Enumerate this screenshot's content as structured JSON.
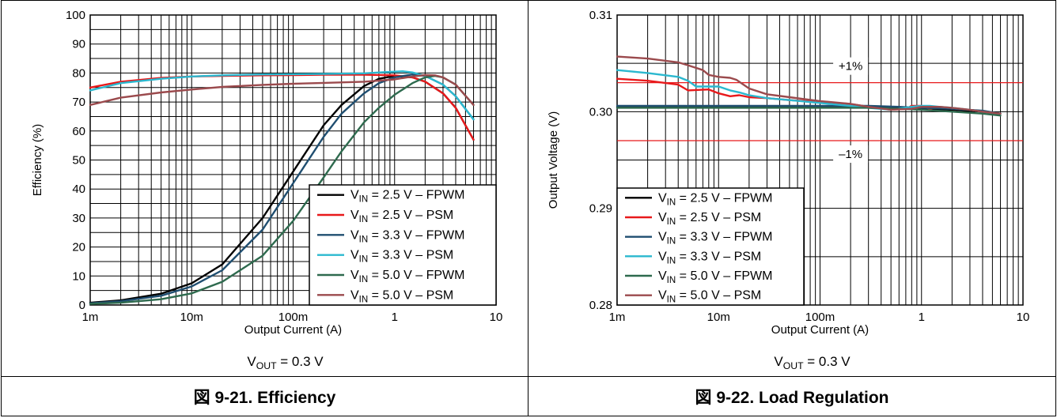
{
  "colors": {
    "vin25_fpwm": "#000000",
    "vin25_psm": "#e8191b",
    "vin33_fpwm": "#1f4e70",
    "vin33_psm": "#2bb8cf",
    "vin50_fpwm": "#2e6a4e",
    "vin50_psm": "#9b4a4d",
    "limit_line": "#e8191b",
    "grid": "#000000"
  },
  "chart_data": [
    {
      "type": "line",
      "caption": "図 9-21. Efficiency",
      "note": "V_OUT = 0.3 V",
      "xlabel": "Output Current (A)",
      "ylabel": "Efficiency (%)",
      "xscale": "log",
      "xlim": [
        0.001,
        10
      ],
      "ylim": [
        0,
        100
      ],
      "xticks": [
        0.001,
        0.01,
        0.1,
        1,
        10
      ],
      "xtick_labels": [
        "1m",
        "10m",
        "100m",
        "1",
        "10"
      ],
      "yticks": [
        0,
        10,
        20,
        30,
        40,
        50,
        60,
        70,
        80,
        90,
        100
      ],
      "ytick_labels": [
        "0",
        "10",
        "20",
        "30",
        "40",
        "50",
        "60",
        "70",
        "80",
        "90",
        "100"
      ],
      "grid": true,
      "legend_position": "bottom-right",
      "series": [
        {
          "name": "V_IN = 2.5 V – FPWM",
          "color_key": "vin25_fpwm",
          "x": [
            0.001,
            0.002,
            0.005,
            0.01,
            0.02,
            0.05,
            0.1,
            0.2,
            0.3,
            0.5,
            0.7,
            1.0,
            1.5,
            2.0,
            3.0,
            4.0,
            6.0
          ],
          "y": [
            0.8,
            1.6,
            3.9,
            7.5,
            14,
            30,
            46,
            62,
            69,
            75.5,
            78,
            79,
            78.5,
            77,
            73,
            68,
            57
          ]
        },
        {
          "name": "V_IN = 2.5 V – PSM",
          "color_key": "vin25_psm",
          "x": [
            0.001,
            0.002,
            0.005,
            0.01,
            0.02,
            0.05,
            0.1,
            0.2,
            0.5,
            1.0,
            1.5,
            2.0,
            3.0,
            4.0,
            6.0
          ],
          "y": [
            75,
            77,
            78.3,
            78.8,
            79.0,
            79.2,
            79.3,
            79.4,
            79.4,
            79.2,
            78.5,
            77,
            73,
            68,
            57
          ]
        },
        {
          "name": "V_IN = 3.3 V – FPWM",
          "color_key": "vin33_fpwm",
          "x": [
            0.001,
            0.002,
            0.005,
            0.01,
            0.02,
            0.05,
            0.1,
            0.2,
            0.3,
            0.5,
            0.7,
            1.0,
            1.5,
            2.0,
            3.0,
            4.0,
            6.0
          ],
          "y": [
            0.6,
            1.3,
            3.2,
            6.4,
            12,
            26,
            42,
            58,
            66,
            73,
            76.5,
            78.5,
            79.5,
            79,
            76,
            72,
            64
          ]
        },
        {
          "name": "V_IN = 3.3 V – PSM",
          "color_key": "vin33_psm",
          "x": [
            0.001,
            0.002,
            0.005,
            0.01,
            0.02,
            0.05,
            0.1,
            0.2,
            0.5,
            0.8,
            1.2,
            1.5,
            2.0,
            3.0,
            4.0,
            6.0
          ],
          "y": [
            74,
            76.5,
            78,
            78.8,
            79.2,
            79.5,
            79.6,
            79.7,
            79.9,
            80.3,
            80.6,
            80.2,
            79,
            76,
            72,
            64
          ]
        },
        {
          "name": "V_IN = 5.0 V – FPWM",
          "color_key": "vin50_fpwm",
          "x": [
            0.001,
            0.002,
            0.005,
            0.01,
            0.02,
            0.05,
            0.1,
            0.2,
            0.3,
            0.5,
            0.7,
            1.0,
            1.5,
            2.0,
            2.5,
            3.0,
            4.0,
            6.0
          ],
          "y": [
            0.4,
            0.8,
            2,
            4,
            8,
            17,
            29,
            44,
            53,
            63,
            68,
            72.5,
            76.5,
            78.5,
            79,
            78.5,
            76,
            69
          ]
        },
        {
          "name": "V_IN = 5.0 V – PSM",
          "color_key": "vin50_psm",
          "x": [
            0.001,
            0.002,
            0.005,
            0.01,
            0.02,
            0.05,
            0.1,
            0.2,
            0.5,
            1.0,
            1.5,
            2.0,
            2.5,
            3.0,
            4.0,
            6.0
          ],
          "y": [
            69,
            71.5,
            73.3,
            74.3,
            75.2,
            75.9,
            76.3,
            76.6,
            77.0,
            77.8,
            78.8,
            79.3,
            79.2,
            78.5,
            76,
            69
          ]
        }
      ]
    },
    {
      "type": "line",
      "caption": "図 9-22. Load Regulation",
      "note": "V_OUT = 0.3 V",
      "xlabel": "Output Current (A)",
      "ylabel": "Output Voltage (V)",
      "xscale": "log",
      "xlim": [
        0.001,
        10
      ],
      "ylim": [
        0.28,
        0.31
      ],
      "xticks": [
        0.001,
        0.01,
        0.1,
        1,
        10
      ],
      "xtick_labels": [
        "1m",
        "10m",
        "100m",
        "1",
        "10"
      ],
      "yticks": [
        0.28,
        0.29,
        0.3,
        0.31
      ],
      "ytick_labels": [
        "0.28",
        "0.29",
        "0.30",
        "0.31"
      ],
      "grid": true,
      "legend_position": "bottom-left",
      "limit_lines": [
        {
          "label": "+1%",
          "y": 0.303
        },
        {
          "label": "–1%",
          "y": 0.297
        }
      ],
      "series": [
        {
          "name": "V_IN = 2.5 V – FPWM",
          "color_key": "vin25_fpwm",
          "x": [
            0.001,
            0.01,
            0.1,
            0.3,
            0.6,
            1.0,
            2.0,
            4.0,
            6.0
          ],
          "y": [
            0.3005,
            0.3005,
            0.3005,
            0.3005,
            0.3004,
            0.3003,
            0.3002,
            0.3,
            0.2998
          ]
        },
        {
          "name": "V_IN = 2.5 V – PSM",
          "color_key": "vin25_psm",
          "x": [
            0.001,
            0.002,
            0.004,
            0.005,
            0.008,
            0.01,
            0.013,
            0.016,
            0.02,
            0.03,
            0.05,
            0.1,
            0.2,
            0.3,
            0.5,
            0.7,
            0.8,
            1.0,
            1.2,
            1.5,
            2.0,
            3.0,
            4.0,
            6.0
          ],
          "y": [
            0.3034,
            0.3032,
            0.3028,
            0.3022,
            0.3023,
            0.3019,
            0.3016,
            0.3017,
            0.3015,
            0.3014,
            0.3012,
            0.301,
            0.3008,
            0.3005,
            0.3002,
            0.3003,
            0.3006,
            0.3006,
            0.3003,
            0.3005,
            0.3003,
            0.3002,
            0.3,
            0.2998
          ]
        },
        {
          "name": "V_IN = 3.3 V – FPWM",
          "color_key": "vin33_fpwm",
          "x": [
            0.001,
            0.01,
            0.1,
            0.3,
            0.6,
            1.0,
            2.0,
            4.0,
            6.0
          ],
          "y": [
            0.3006,
            0.3006,
            0.3006,
            0.3006,
            0.3005,
            0.3004,
            0.3003,
            0.3001,
            0.2998
          ]
        },
        {
          "name": "V_IN = 3.3 V – PSM",
          "color_key": "vin33_psm",
          "x": [
            0.001,
            0.002,
            0.004,
            0.005,
            0.006,
            0.01,
            0.013,
            0.016,
            0.02,
            0.03,
            0.05,
            0.1,
            0.2,
            0.3,
            0.5,
            0.8,
            1.0,
            1.2,
            1.5,
            2.0,
            3.0,
            4.0,
            6.0
          ],
          "y": [
            0.3043,
            0.304,
            0.3036,
            0.3032,
            0.3026,
            0.3026,
            0.3022,
            0.302,
            0.3017,
            0.3014,
            0.3012,
            0.3009,
            0.3006,
            0.3004,
            0.3002,
            0.3005,
            0.3006,
            0.3006,
            0.3005,
            0.3004,
            0.3002,
            0.3,
            0.2998
          ]
        },
        {
          "name": "V_IN = 5.0 V – FPWM",
          "color_key": "vin50_fpwm",
          "x": [
            0.001,
            0.01,
            0.1,
            0.3,
            0.6,
            1.0,
            2.0,
            4.0,
            6.0
          ],
          "y": [
            0.3004,
            0.3004,
            0.3004,
            0.3004,
            0.3003,
            0.3002,
            0.3,
            0.2998,
            0.2996
          ]
        },
        {
          "name": "V_IN = 5.0 V – PSM",
          "color_key": "vin50_psm",
          "x": [
            0.001,
            0.002,
            0.004,
            0.005,
            0.007,
            0.008,
            0.01,
            0.013,
            0.015,
            0.02,
            0.03,
            0.05,
            0.1,
            0.2,
            0.3,
            0.5,
            0.8,
            1.0,
            1.5,
            2.0,
            3.0,
            4.0,
            6.0
          ],
          "y": [
            0.3057,
            0.3055,
            0.3051,
            0.3048,
            0.3043,
            0.3038,
            0.3036,
            0.3035,
            0.3033,
            0.3024,
            0.3018,
            0.3015,
            0.3011,
            0.3008,
            0.3005,
            0.3002,
            0.3003,
            0.3005,
            0.3005,
            0.3004,
            0.3002,
            0.3,
            0.2998
          ]
        }
      ]
    }
  ]
}
